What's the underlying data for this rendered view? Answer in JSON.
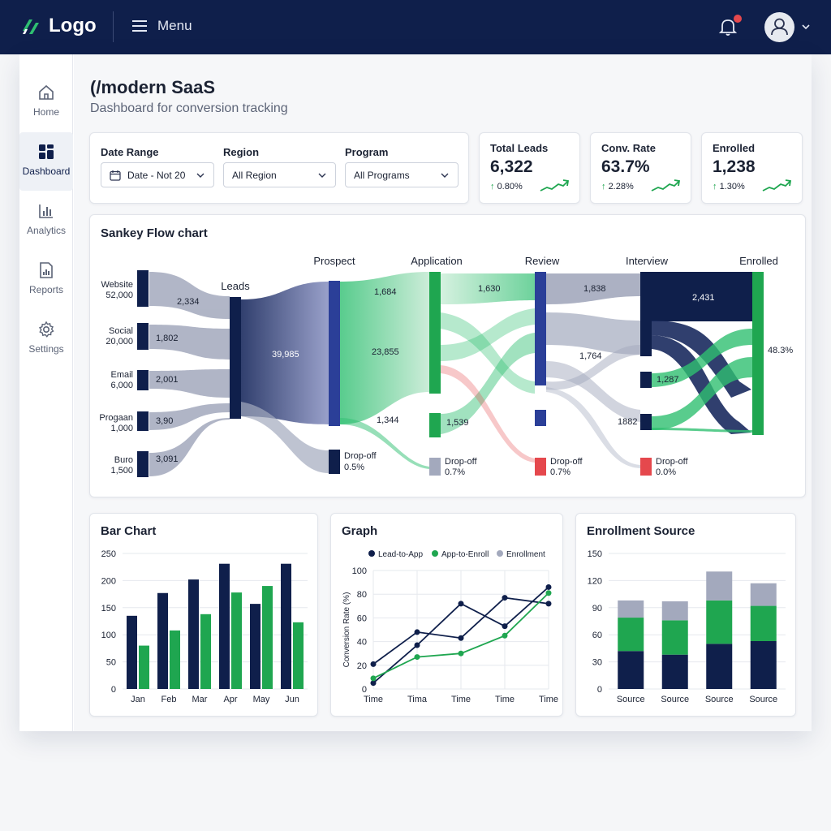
{
  "topbar": {
    "logo_text": "Logo",
    "menu_label": "Menu",
    "icons": [
      "logo-mark-icon",
      "hamburger-icon",
      "bell-icon",
      "user-icon",
      "chevron-down-icon"
    ],
    "notification_dot_color": "#e5484d"
  },
  "sidebar": {
    "items": [
      {
        "label": "Home",
        "icon": "home-icon",
        "active": false
      },
      {
        "label": "Dashboard",
        "icon": "dashboard-icon",
        "active": true
      },
      {
        "label": "Analytics",
        "icon": "analytics-icon",
        "active": false
      },
      {
        "label": "Reports",
        "icon": "reports-icon",
        "active": false
      },
      {
        "label": "Settings",
        "icon": "settings-icon",
        "active": false
      }
    ]
  },
  "page": {
    "title": "(/modern SaaS",
    "subtitle": "Dashboard for conversion tracking"
  },
  "filters": {
    "date_range": {
      "label": "Date Range",
      "value": "Date - Not 20"
    },
    "region": {
      "label": "Region",
      "value": "All Region"
    },
    "program": {
      "label": "Program",
      "value": "All Programs"
    }
  },
  "kpis": [
    {
      "label": "Total Leads",
      "value": "6,322",
      "delta": "0.80%"
    },
    {
      "label": "Conv. Rate",
      "value": "63.7%",
      "delta": "2.28%"
    },
    {
      "label": "Enrolled",
      "value": "1,238",
      "delta": "1.30%"
    }
  ],
  "colors": {
    "navy": "#0f1f4b",
    "green": "#1fa650",
    "gray": "#a3a9bd",
    "red": "#e5484d"
  },
  "sankey": {
    "title": "Sankey Flow chart",
    "sources": [
      {
        "name": "Website",
        "count": "52,000",
        "flow": "2,334"
      },
      {
        "name": "Social",
        "count": "20,000",
        "flow": "1,802"
      },
      {
        "name": "Email",
        "count": "6,000",
        "flow": "2,001"
      },
      {
        "name": "Progaan",
        "count": "1,000",
        "flow": "3,90"
      },
      {
        "name": "Buro",
        "count": "1,500",
        "flow": "3,091"
      }
    ],
    "stages": [
      "Leads",
      "Prospect",
      "Application",
      "Review",
      "Interview",
      "Enrolled"
    ],
    "flows": {
      "leads_to_prospect": "39,985",
      "prospect_app_top": "1,684",
      "prospect_app_mid": "23,855",
      "prospect_app_low": "1,344",
      "app_review_top": "1,630",
      "app_review_low": "1,539",
      "review_interview_top": "1,838",
      "review_interview_mid": "1,764",
      "review_interview_low": "1882",
      "interview_enrolled_top": "2,431",
      "interview_enrolled_low": "1,287",
      "enrolled_rate": "48.3%"
    },
    "dropoffs": [
      {
        "label": "Drop-off",
        "value": "0.5%"
      },
      {
        "label": "Drop-off",
        "value": "0.7%"
      },
      {
        "label": "Drop-off",
        "value": "0.7%"
      },
      {
        "label": "Drop-off",
        "value": "0.0%"
      }
    ]
  },
  "bar_panel": {
    "title": "Bar Chart"
  },
  "graph_panel": {
    "title": "Graph"
  },
  "source_panel": {
    "title": "Enrollment Source"
  },
  "chart_data": [
    {
      "type": "bar",
      "title": "Bar Chart",
      "categories": [
        "Jan",
        "Feb",
        "Mar",
        "Apr",
        "May",
        "Jun"
      ],
      "series": [
        {
          "color": "#0f1f4b",
          "values": [
            135,
            177,
            202,
            231,
            157,
            231
          ]
        },
        {
          "color": "#1fa650",
          "values": [
            80,
            108,
            138,
            178,
            190,
            123
          ]
        }
      ],
      "ylim": [
        0,
        250
      ],
      "yticks": [
        0,
        50,
        100,
        150,
        200,
        250
      ],
      "grid": true
    },
    {
      "type": "line",
      "title": "Graph",
      "ylabel": "Conversion Rate (%)",
      "categories": [
        "Time",
        "Tima",
        "Time",
        "Time",
        "Time"
      ],
      "series": [
        {
          "name": "Lead-to-App",
          "color": "#0f1f4b",
          "values": [
            21,
            48,
            43,
            77,
            72
          ]
        },
        {
          "name": "Lead-to-App",
          "color": "#0f1f4b",
          "values": [
            5,
            37,
            72,
            53,
            86
          ]
        },
        {
          "name": "App-to-Enroll",
          "color": "#1fa650",
          "values": [
            9,
            27,
            30,
            45,
            81
          ]
        }
      ],
      "legend_entries": [
        "Lead-to-App",
        "App-to-Enroll",
        "Enrollment"
      ],
      "legend_colors": [
        "#0f1f4b",
        "#1fa650",
        "#a3a9bd"
      ],
      "ylim": [
        0,
        100
      ],
      "yticks": [
        0,
        20,
        40,
        60,
        80,
        100
      ],
      "legend_position": "top",
      "grid": true
    },
    {
      "type": "bar",
      "title": "Enrollment Source",
      "categories": [
        "Source",
        "Source",
        "Source",
        "Source"
      ],
      "stacked": true,
      "series": [
        {
          "color": "#0f1f4b",
          "values": [
            42,
            38,
            50,
            53
          ]
        },
        {
          "color": "#1fa650",
          "values": [
            37,
            38,
            48,
            39
          ]
        },
        {
          "color": "#a3a9bd",
          "values": [
            19,
            21,
            32,
            25
          ]
        }
      ],
      "ylim": [
        0,
        150
      ],
      "yticks": [
        0,
        30,
        60,
        90,
        120,
        150
      ],
      "grid": true
    }
  ]
}
